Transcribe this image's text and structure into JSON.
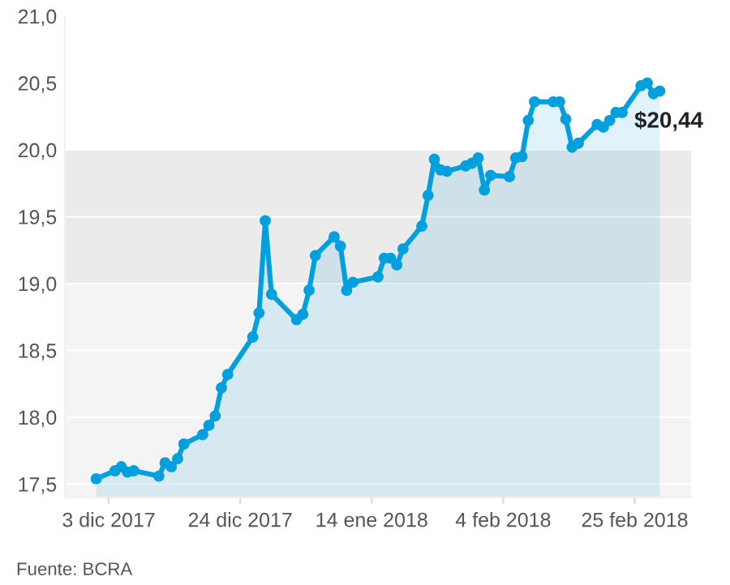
{
  "chart_data": {
    "type": "area",
    "x": [
      "2017-12-01",
      "2017-12-04",
      "2017-12-05",
      "2017-12-06",
      "2017-12-07",
      "2017-12-11",
      "2017-12-12",
      "2017-12-13",
      "2017-12-14",
      "2017-12-15",
      "2017-12-18",
      "2017-12-19",
      "2017-12-20",
      "2017-12-21",
      "2017-12-22",
      "2017-12-26",
      "2017-12-27",
      "2017-12-28",
      "2017-12-29",
      "2018-01-02",
      "2018-01-03",
      "2018-01-04",
      "2018-01-05",
      "2018-01-08",
      "2018-01-09",
      "2018-01-10",
      "2018-01-11",
      "2018-01-15",
      "2018-01-16",
      "2018-01-17",
      "2018-01-18",
      "2018-01-19",
      "2018-01-22",
      "2018-01-23",
      "2018-01-24",
      "2018-01-25",
      "2018-01-26",
      "2018-01-29",
      "2018-01-30",
      "2018-01-31",
      "2018-02-01",
      "2018-02-02",
      "2018-02-05",
      "2018-02-06",
      "2018-02-07",
      "2018-02-08",
      "2018-02-09",
      "2018-02-12",
      "2018-02-13",
      "2018-02-14",
      "2018-02-15",
      "2018-02-16",
      "2018-02-19",
      "2018-02-20",
      "2018-02-21",
      "2018-02-22",
      "2018-02-23",
      "2018-02-26",
      "2018-02-27",
      "2018-02-28",
      "2018-03-01"
    ],
    "series": [
      {
        "color": "#00a0e0",
        "values": [
          17.54,
          17.6,
          17.63,
          17.59,
          17.6,
          17.56,
          17.66,
          17.63,
          17.69,
          17.8,
          17.87,
          17.94,
          18.01,
          18.22,
          18.32,
          18.6,
          18.78,
          19.47,
          18.92,
          18.73,
          18.77,
          18.95,
          19.21,
          19.35,
          19.28,
          18.95,
          19.01,
          19.05,
          19.19,
          19.19,
          19.14,
          19.26,
          19.43,
          19.66,
          19.93,
          19.85,
          19.84,
          19.88,
          19.9,
          19.94,
          19.7,
          19.81,
          19.8,
          19.94,
          19.95,
          20.22,
          20.36,
          20.36,
          20.36,
          20.23,
          20.02,
          20.05,
          20.19,
          20.17,
          20.22,
          20.28,
          20.28,
          20.48,
          20.5,
          20.42,
          20.44
        ]
      }
    ],
    "xlim": [
      "2017-11-26",
      "2018-03-06"
    ],
    "xticks": [
      {
        "value": "2017-12-03",
        "label": "3 dic 2017"
      },
      {
        "value": "2017-12-24",
        "label": "24 dic 2017"
      },
      {
        "value": "2018-01-14",
        "label": "14 ene 2018"
      },
      {
        "value": "2018-02-04",
        "label": "4 feb 2018"
      },
      {
        "value": "2018-02-25",
        "label": "25 feb 2018"
      }
    ],
    "ylim": [
      17.4,
      21.0
    ],
    "yticks": [
      {
        "value": 17.5,
        "label": "17,5"
      },
      {
        "value": 18.0,
        "label": "18,0"
      },
      {
        "value": 18.5,
        "label": "18,5"
      },
      {
        "value": 19.0,
        "label": "19,0"
      },
      {
        "value": 19.5,
        "label": "19,5"
      },
      {
        "value": 20.0,
        "label": "20,0"
      },
      {
        "value": 20.5,
        "label": "20,5"
      },
      {
        "value": 21.0,
        "label": "21,0"
      }
    ],
    "bands": [
      {
        "axis": "y",
        "from": 17.4,
        "to": 19.0,
        "color": "#f4f4f4"
      },
      {
        "axis": "y",
        "from": 19.0,
        "to": 20.0,
        "color": "#ebebeb"
      }
    ],
    "grid": "y",
    "marker": "circle",
    "line_style": "solid",
    "annotations": [
      {
        "text": "$20,44",
        "x": "2018-03-01",
        "y": 20.44
      },
      "Fuente: BCRA"
    ]
  }
}
